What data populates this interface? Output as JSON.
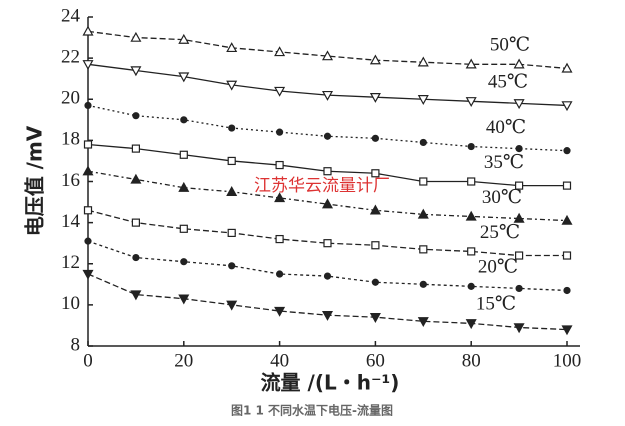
{
  "chart_data": {
    "type": "line",
    "x_label": "流量 /(L・h⁻¹)",
    "y_label": "电压值 /mV",
    "caption": "图1 1 不同水温下电压-流量图",
    "watermark": "江苏华云流量计厂",
    "x": [
      0,
      10,
      20,
      30,
      40,
      50,
      60,
      70,
      80,
      90,
      100
    ],
    "xlim": [
      0,
      100
    ],
    "xticks": [
      0,
      20,
      40,
      60,
      80,
      100
    ],
    "ylim": [
      8,
      24
    ],
    "yticks": [
      8,
      10,
      12,
      14,
      16,
      18,
      20,
      22,
      24
    ],
    "series": [
      {
        "name": "50℃",
        "color": "#222",
        "marker": "triangle",
        "dash": "6,3",
        "values": [
          23.3,
          23.0,
          22.9,
          22.5,
          22.3,
          22.1,
          21.9,
          21.8,
          21.7,
          21.7,
          21.5
        ]
      },
      {
        "name": "45℃",
        "color": "#222",
        "marker": "triangle-down",
        "dash": "none",
        "values": [
          21.7,
          21.4,
          21.1,
          20.7,
          20.4,
          20.2,
          20.1,
          20.0,
          19.9,
          19.8,
          19.7
        ]
      },
      {
        "name": "40℃",
        "color": "#222",
        "marker": "dot",
        "dash": "2,3",
        "values": [
          19.7,
          19.2,
          19.0,
          18.6,
          18.4,
          18.2,
          18.1,
          17.9,
          17.7,
          17.6,
          17.5
        ]
      },
      {
        "name": "35℃",
        "color": "#222",
        "marker": "square",
        "dash": "none",
        "values": [
          17.8,
          17.6,
          17.3,
          17.0,
          16.8,
          16.5,
          16.4,
          16.0,
          16.0,
          15.8,
          15.8
        ]
      },
      {
        "name": "30℃",
        "color": "#222",
        "marker": "triangle-filled",
        "dash": "5,3,2,3",
        "values": [
          16.5,
          16.1,
          15.7,
          15.5,
          15.2,
          14.9,
          14.6,
          14.4,
          14.3,
          14.2,
          14.1
        ]
      },
      {
        "name": "25℃",
        "color": "#222",
        "marker": "square",
        "dash": "6,3",
        "values": [
          14.6,
          14.0,
          13.7,
          13.5,
          13.2,
          13.0,
          12.9,
          12.7,
          12.6,
          12.4,
          12.4
        ]
      },
      {
        "name": "20℃",
        "color": "#222",
        "marker": "dot",
        "dash": "3,3",
        "values": [
          13.1,
          12.3,
          12.1,
          11.9,
          11.5,
          11.4,
          11.1,
          11.0,
          10.9,
          10.8,
          10.7
        ]
      },
      {
        "name": "15℃",
        "color": "#222",
        "marker": "triangle-down-filled",
        "dash": "6,3",
        "values": [
          11.5,
          10.5,
          10.3,
          10.0,
          9.7,
          9.5,
          9.4,
          9.2,
          9.1,
          8.9,
          8.8
        ]
      }
    ]
  }
}
